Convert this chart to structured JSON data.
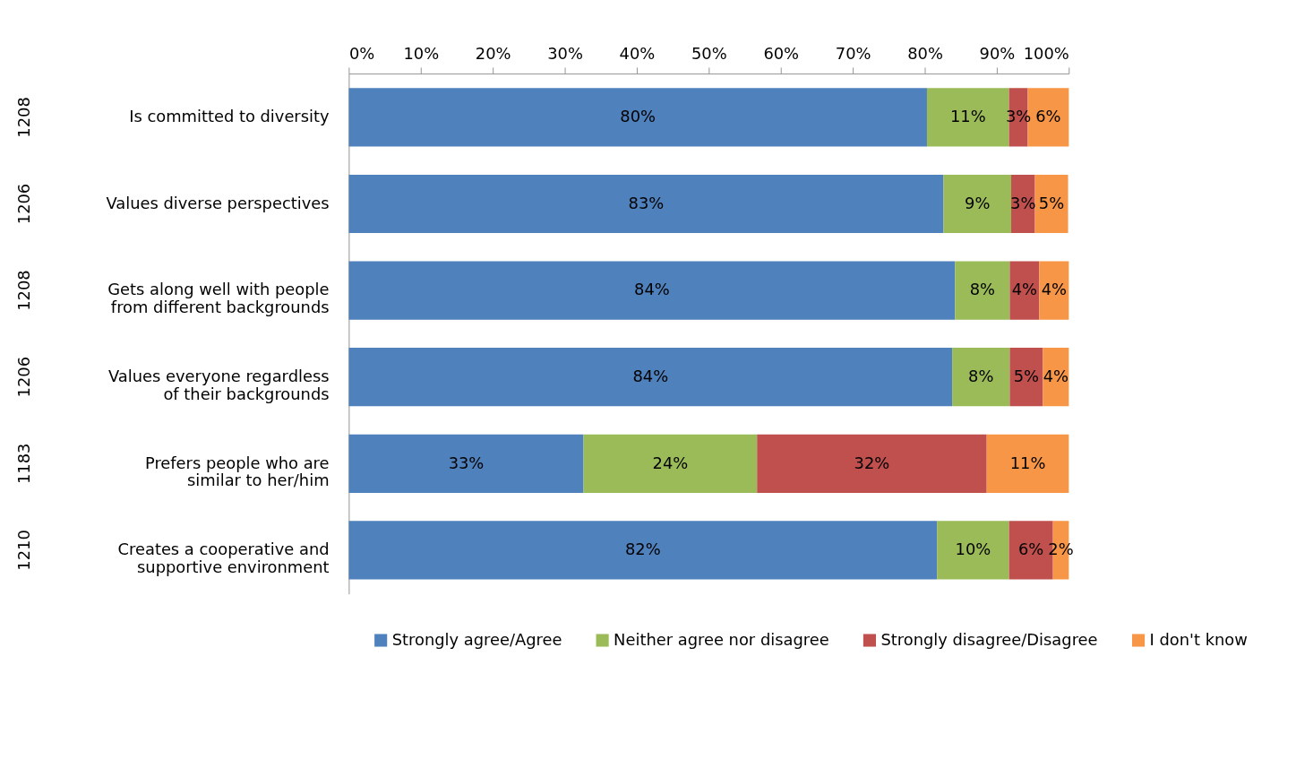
{
  "chart_data": {
    "type": "bar",
    "orientation": "horizontal",
    "stacked": true,
    "categories": [
      "Is committed to diversity",
      "Values diverse perspectives",
      "Gets along well with people from different backgrounds",
      "Values everyone regardless of their backgrounds",
      "Prefers people who are similar to her/him",
      "Creates a cooperative and supportive environment"
    ],
    "series": [
      {
        "name": "Strongly agree/Agree",
        "color": "#4f81bd",
        "values": [
          80.3,
          82.6,
          84.2,
          83.8,
          32.6,
          81.7
        ],
        "value_labels": [
          "80%",
          "83%",
          "84%",
          "84%",
          "33%",
          "82%"
        ]
      },
      {
        "name": "Neither agree nor disagree",
        "color": "#9bbb59",
        "values": [
          11.4,
          9.4,
          7.6,
          8.0,
          24.1,
          10.0
        ],
        "value_labels": [
          "11%",
          "9%",
          "8%",
          "8%",
          "24%",
          "10%"
        ]
      },
      {
        "name": "Strongly disagree/Disagree",
        "color": "#c0504d",
        "values": [
          2.6,
          3.3,
          4.1,
          4.6,
          31.9,
          6.1
        ],
        "value_labels": [
          "3%",
          "3%",
          "4%",
          "5%",
          "32%",
          "6%"
        ]
      },
      {
        "name": "I don't know",
        "color": "#f79646",
        "values": [
          5.7,
          4.6,
          4.1,
          3.6,
          11.4,
          2.2
        ],
        "value_labels": [
          "6%",
          "5%",
          "4%",
          "4%",
          "11%",
          "2%"
        ]
      }
    ],
    "xlim": [
      0,
      100
    ],
    "xticks": [
      {
        "value": 0,
        "label": "0%"
      },
      {
        "value": 10,
        "label": "10%"
      },
      {
        "value": 20,
        "label": "20%"
      },
      {
        "value": 30,
        "label": "30%"
      },
      {
        "value": 40,
        "label": "40%"
      },
      {
        "value": 50,
        "label": "50%"
      },
      {
        "value": 60,
        "label": "60%"
      },
      {
        "value": 70,
        "label": "70%"
      },
      {
        "value": 80,
        "label": "80%"
      },
      {
        "value": 90,
        "label": "90%"
      },
      {
        "value": 100,
        "label": "100%"
      }
    ],
    "annotations": [
      "1208",
      "1206",
      "1208",
      "1206",
      "1183",
      "1210"
    ],
    "legend": "bottom",
    "grid": false
  }
}
